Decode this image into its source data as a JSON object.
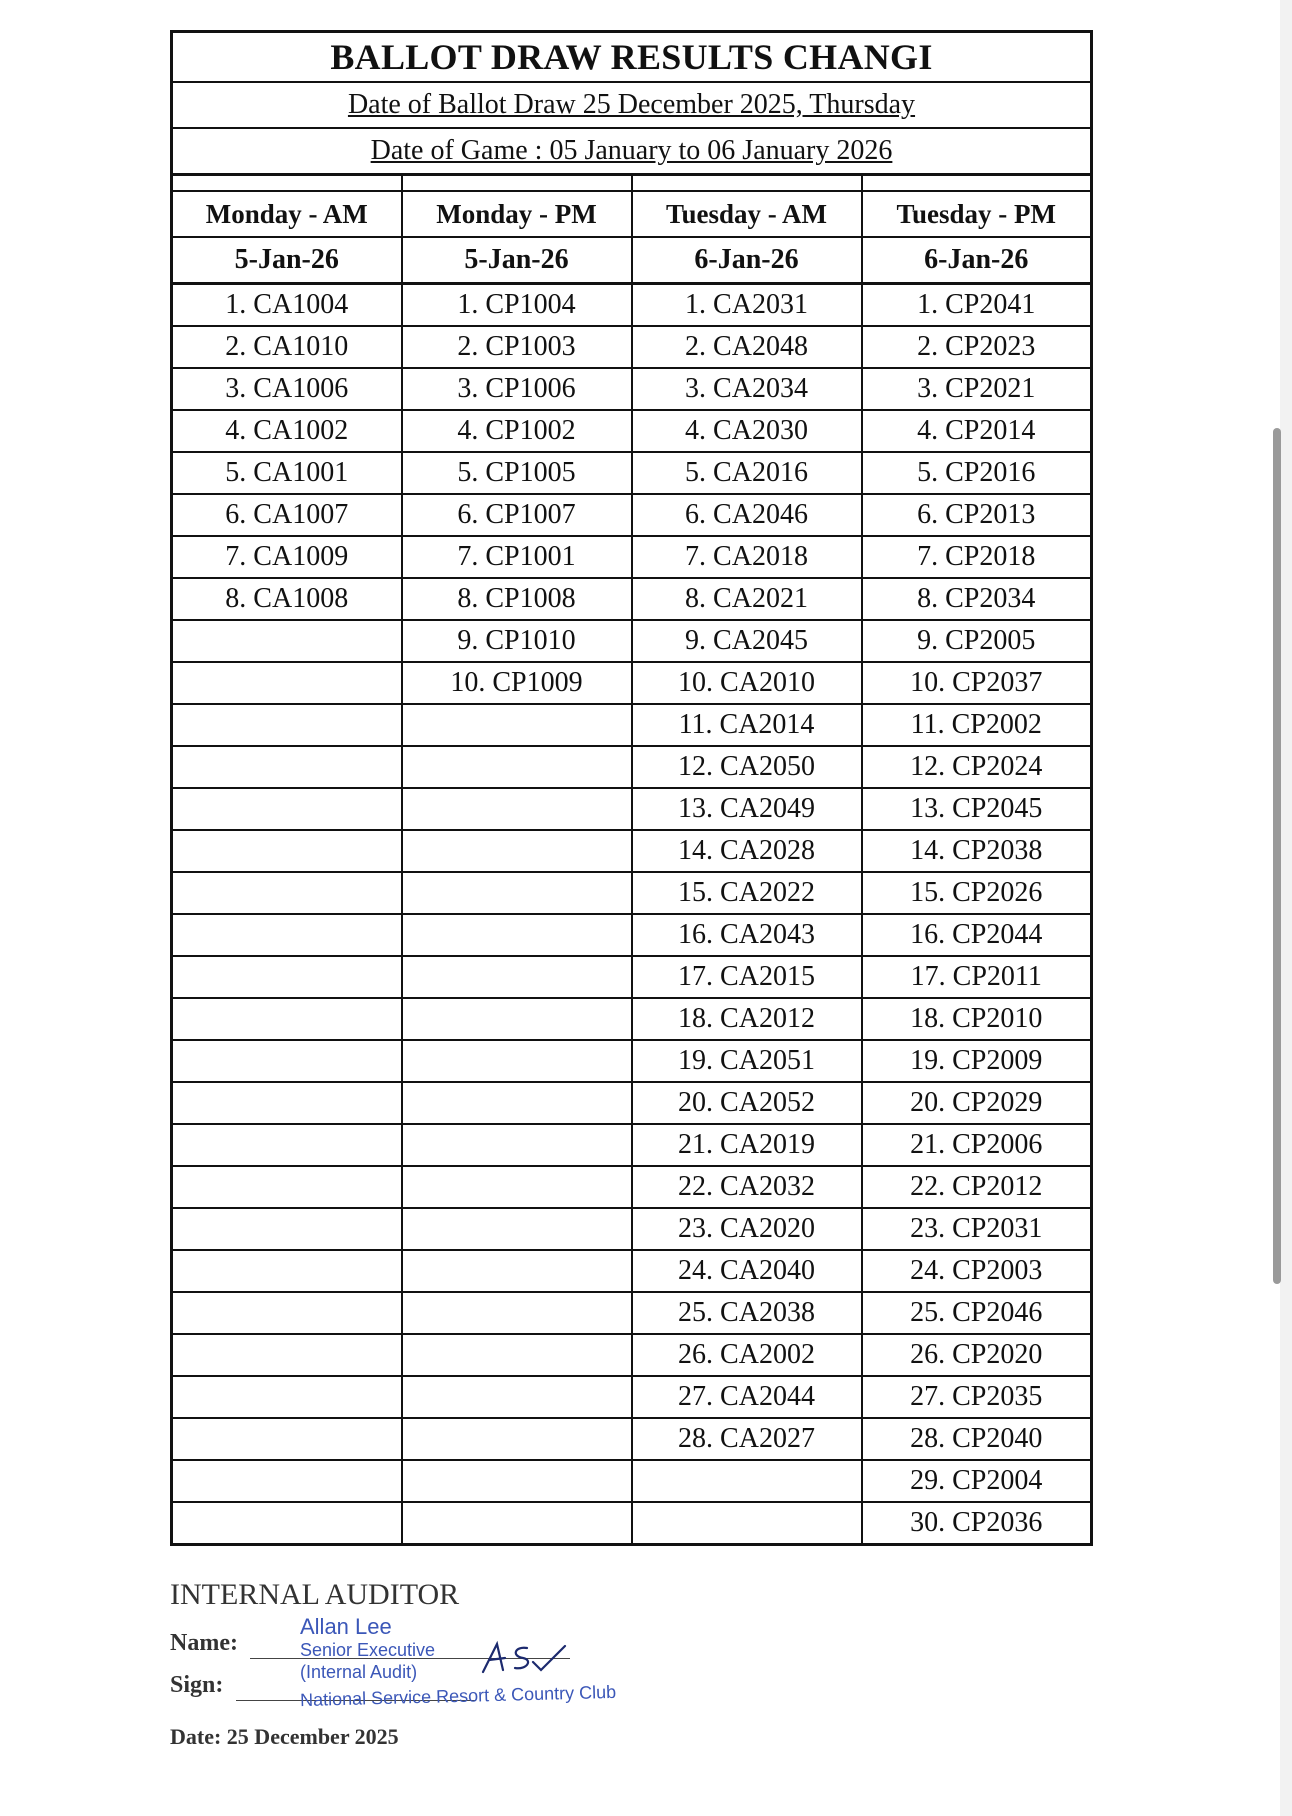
{
  "title": "BALLOT DRAW RESULTS CHANGI",
  "draw_date": "Date of Ballot Draw 25 December 2025, Thursday",
  "game_date": "Date of Game : 05 January to 06 January 2026",
  "columns": [
    {
      "session": "Monday - AM",
      "date": "5-Jan-26",
      "entries": [
        "1. CA1004",
        "2. CA1010",
        "3. CA1006",
        "4. CA1002",
        "5. CA1001",
        "6. CA1007",
        "7. CA1009",
        "8. CA1008"
      ]
    },
    {
      "session": "Monday - PM",
      "date": "5-Jan-26",
      "entries": [
        "1. CP1004",
        "2. CP1003",
        "3. CP1006",
        "4. CP1002",
        "5. CP1005",
        "6. CP1007",
        "7. CP1001",
        "8. CP1008",
        "9. CP1010",
        "10. CP1009"
      ]
    },
    {
      "session": "Tuesday - AM",
      "date": "6-Jan-26",
      "entries": [
        "1. CA2031",
        "2. CA2048",
        "3. CA2034",
        "4. CA2030",
        "5. CA2016",
        "6. CA2046",
        "7. CA2018",
        "8. CA2021",
        "9. CA2045",
        "10. CA2010",
        "11. CA2014",
        "12. CA2050",
        "13. CA2049",
        "14. CA2028",
        "15. CA2022",
        "16. CA2043",
        "17. CA2015",
        "18. CA2012",
        "19. CA2051",
        "20. CA2052",
        "21. CA2019",
        "22. CA2032",
        "23. CA2020",
        "24. CA2040",
        "25. CA2038",
        "26. CA2002",
        "27. CA2044",
        "28. CA2027"
      ]
    },
    {
      "session": "Tuesday - PM",
      "date": "6-Jan-26",
      "entries": [
        "1. CP2041",
        "2. CP2023",
        "3. CP2021",
        "4. CP2014",
        "5. CP2016",
        "6. CP2013",
        "7. CP2018",
        "8. CP2034",
        "9. CP2005",
        "10. CP2037",
        "11. CP2002",
        "12. CP2024",
        "13. CP2045",
        "14. CP2038",
        "15. CP2026",
        "16. CP2044",
        "17. CP2011",
        "18. CP2010",
        "19. CP2009",
        "20. CP2029",
        "21. CP2006",
        "22. CP2012",
        "23. CP2031",
        "24. CP2003",
        "25. CP2046",
        "26. CP2020",
        "27. CP2035",
        "28. CP2040",
        "29. CP2004",
        "30. CP2036"
      ]
    }
  ],
  "footer": {
    "heading": "INTERNAL AUDITOR",
    "name_label": "Name:",
    "sign_label": "Sign:",
    "date_line": "Date: 25 December 2025",
    "stamp": {
      "name": "Allan Lee",
      "title": "Senior Executive",
      "dept": "(Internal Audit)",
      "org": "National Service Resort & Country Club"
    },
    "ink_color": "#3b57b8"
  }
}
